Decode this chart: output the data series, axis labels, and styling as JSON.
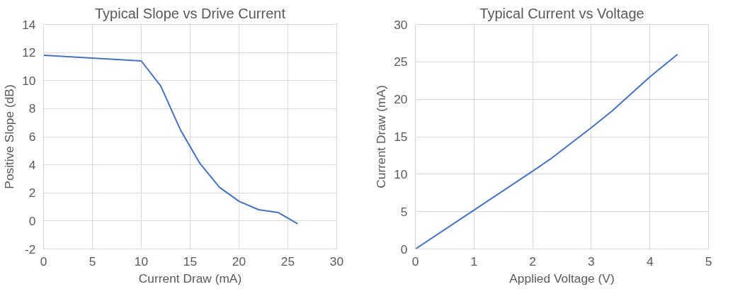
{
  "chart_data": [
    {
      "type": "line",
      "title": "Typical Slope vs Drive Current",
      "xlabel": "Current Draw (mA)",
      "ylabel": "Positive Slope (dB)",
      "x": [
        0,
        10,
        12,
        14,
        16,
        18,
        20,
        22,
        24,
        26
      ],
      "series": [
        {
          "color": "#4472c4",
          "values": [
            11.8,
            11.4,
            9.6,
            6.5,
            4.1,
            2.4,
            1.4,
            0.8,
            0.6,
            -0.2
          ]
        }
      ],
      "xlim": [
        0,
        30
      ],
      "xticks": [
        0,
        5,
        10,
        15,
        20,
        25,
        30
      ],
      "ylim": [
        -2,
        14
      ],
      "yticks": [
        -2,
        0,
        2,
        4,
        6,
        8,
        10,
        12,
        14
      ],
      "grid": true
    },
    {
      "type": "line",
      "title": "Typical Current vs Voltage",
      "xlabel": "Applied Voltage (V)",
      "ylabel": "Current Draw (mA)",
      "x": [
        0,
        1,
        2,
        2.3,
        3,
        3.35,
        4,
        4.47
      ],
      "series": [
        {
          "color": "#4472c4",
          "values": [
            0,
            5.2,
            10.4,
            12.0,
            16.2,
            18.4,
            23.0,
            26.0
          ]
        }
      ],
      "xlim": [
        0,
        5
      ],
      "xticks": [
        0,
        1,
        2,
        3,
        4,
        5
      ],
      "ylim": [
        0,
        30
      ],
      "yticks": [
        0,
        5,
        10,
        15,
        20,
        25,
        30
      ],
      "grid": true
    }
  ]
}
